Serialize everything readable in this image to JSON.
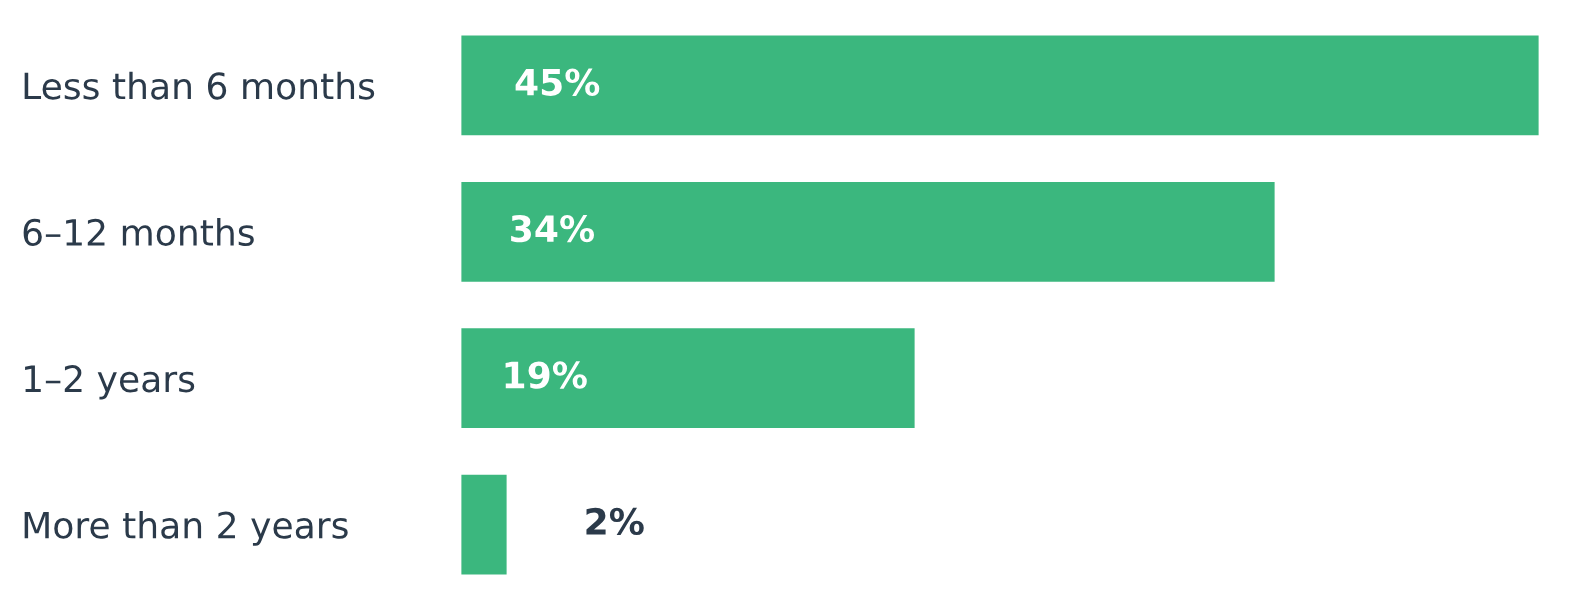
{
  "chart_data": {
    "type": "bar",
    "orientation": "horizontal",
    "categories": [
      "Less than 6 months",
      "6–12 months",
      "1–2 years",
      "More than 2 years"
    ],
    "values": [
      45,
      34,
      19,
      2
    ],
    "value_labels": [
      "45%",
      "34%",
      "19%",
      "2%"
    ],
    "color": "#3bb77e",
    "grid": false,
    "legend": false
  }
}
